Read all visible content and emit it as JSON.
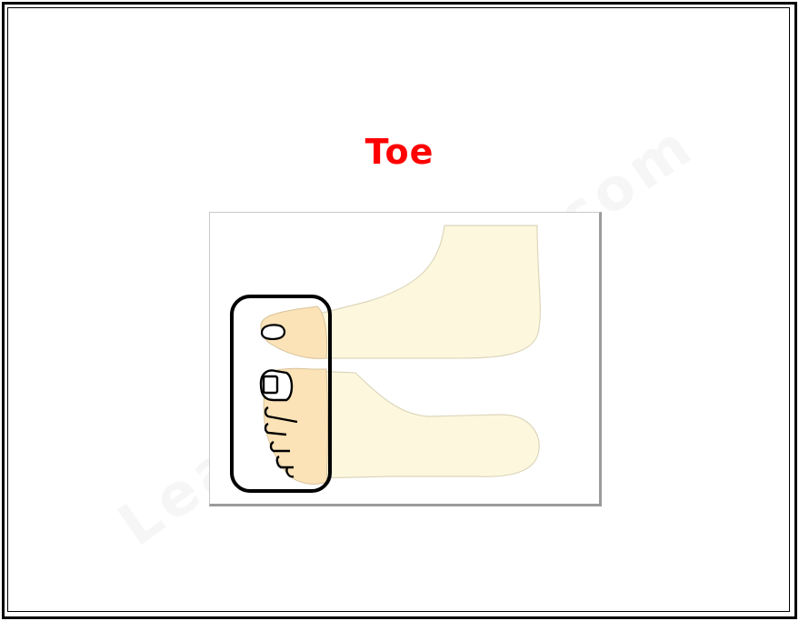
{
  "card": {
    "title": "Toe",
    "watermark": "LearningProd.com"
  },
  "colors": {
    "title": "#ff0000",
    "skin_faded": "#fdf7dd",
    "skin_highlight": "#fbe2b7",
    "outline": "#000000",
    "frame": "#000000"
  },
  "illustration": {
    "subject": "feet-side-view",
    "highlight": "toes"
  }
}
